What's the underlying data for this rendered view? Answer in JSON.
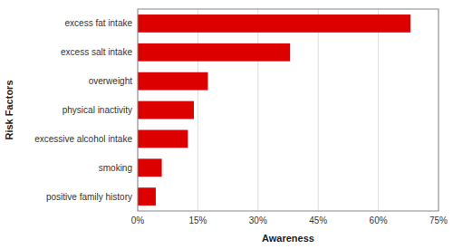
{
  "chart_data": {
    "type": "bar",
    "orientation": "horizontal",
    "categories": [
      "positive family history",
      "smoking",
      "excessive alcohol intake",
      "physical inactivity",
      "overweight",
      "excess salt intake",
      "excess fat intake"
    ],
    "values": [
      4.5,
      6.0,
      12.5,
      14.0,
      17.5,
      38.0,
      68.0
    ],
    "color": "#DD0000",
    "xlabel": "Awareness",
    "ylabel": "Risk Factors",
    "xlim": [
      0,
      75
    ],
    "xticks": [
      {
        "value": 0,
        "label": "0%"
      },
      {
        "value": 15,
        "label": "15%"
      },
      {
        "value": 30,
        "label": "30%"
      },
      {
        "value": 45,
        "label": "45%"
      },
      {
        "value": 60,
        "label": "60%"
      },
      {
        "value": 75,
        "label": "75%"
      }
    ],
    "grid": true
  }
}
